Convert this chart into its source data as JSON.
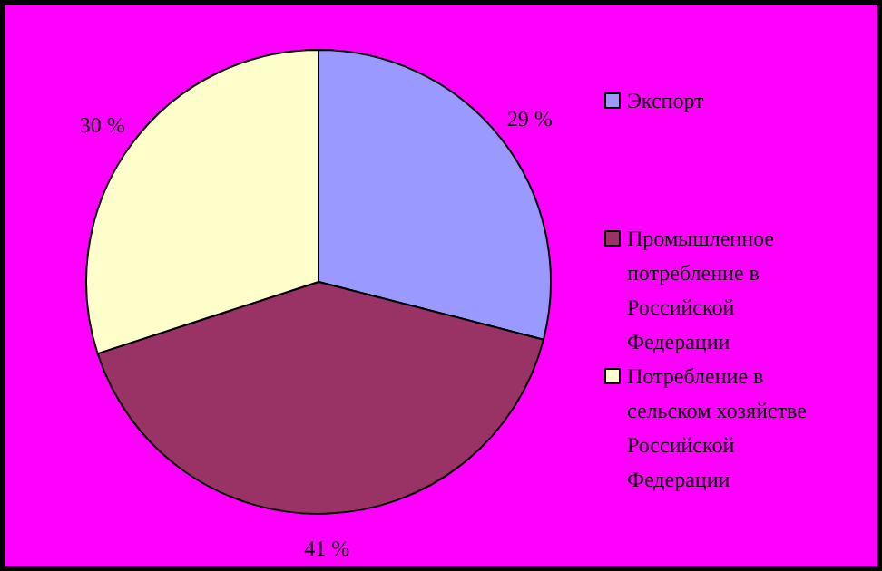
{
  "chart_data": {
    "type": "pie",
    "categories": [
      "Экспорт",
      "Промышленное потребление в Российской Федерации",
      "Потребление в сельском хозяйстве Российской Федерации"
    ],
    "values": [
      29,
      41,
      30
    ],
    "value_labels": [
      "29 %",
      "41 %",
      "30 %"
    ],
    "colors": [
      "#9999ff",
      "#993366",
      "#ffffcc"
    ],
    "legend": "right"
  }
}
